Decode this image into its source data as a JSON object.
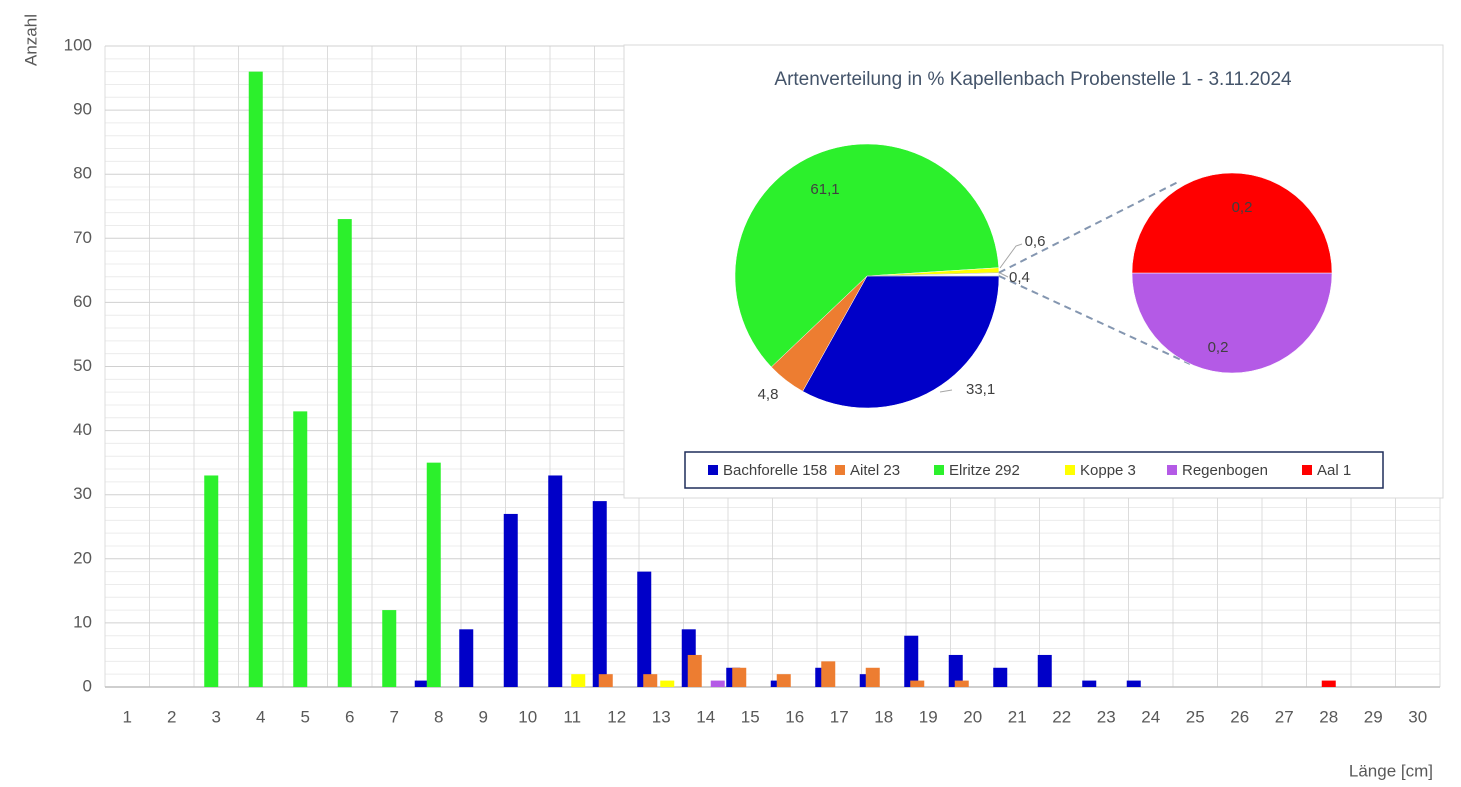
{
  "chart_data": [
    {
      "type": "bar",
      "y_label": "Anzahl",
      "x_label": "Länge [cm]",
      "categories": [
        1,
        2,
        3,
        4,
        5,
        6,
        7,
        8,
        9,
        10,
        11,
        12,
        13,
        14,
        15,
        16,
        17,
        18,
        19,
        20,
        21,
        22,
        23,
        24,
        25,
        26,
        27,
        28,
        29,
        30
      ],
      "series": [
        {
          "name": "Bachforelle",
          "color": "#0000c8",
          "values": [
            0,
            0,
            0,
            0,
            0,
            0,
            0,
            1,
            9,
            27,
            33,
            29,
            18,
            9,
            3,
            1,
            3,
            2,
            8,
            5,
            3,
            5,
            1,
            1,
            0,
            0,
            0,
            0,
            0,
            0
          ]
        },
        {
          "name": "Aitel",
          "color": "#ed7d31",
          "values": [
            0,
            0,
            0,
            0,
            0,
            0,
            0,
            0,
            0,
            0,
            0,
            2,
            2,
            5,
            3,
            2,
            4,
            3,
            1,
            1,
            0,
            0,
            0,
            0,
            0,
            0,
            0,
            0,
            0,
            0
          ]
        },
        {
          "name": "Elritze",
          "color": "#2cf02c",
          "values": [
            0,
            0,
            33,
            96,
            43,
            73,
            12,
            35,
            0,
            0,
            0,
            0,
            0,
            0,
            0,
            0,
            0,
            0,
            0,
            0,
            0,
            0,
            0,
            0,
            0,
            0,
            0,
            0,
            0,
            0
          ]
        },
        {
          "name": "Koppe",
          "color": "#ffff00",
          "values": [
            0,
            0,
            0,
            0,
            0,
            0,
            0,
            0,
            0,
            0,
            2,
            0,
            1,
            0,
            0,
            0,
            0,
            0,
            0,
            0,
            0,
            0,
            0,
            0,
            0,
            0,
            0,
            0,
            0,
            0
          ]
        },
        {
          "name": "Regenbogen",
          "color": "#b45ae6",
          "values": [
            0,
            0,
            0,
            0,
            0,
            0,
            0,
            0,
            0,
            0,
            0,
            0,
            0,
            1,
            0,
            0,
            0,
            0,
            0,
            0,
            0,
            0,
            0,
            0,
            0,
            0,
            0,
            0,
            0,
            0
          ]
        },
        {
          "name": "Aal",
          "color": "#ff0000",
          "values": [
            0,
            0,
            0,
            0,
            0,
            0,
            0,
            0,
            0,
            0,
            0,
            0,
            0,
            0,
            0,
            0,
            0,
            0,
            0,
            0,
            0,
            0,
            0,
            0,
            0,
            0,
            0,
            1,
            0,
            0
          ]
        }
      ],
      "ylim": [
        0,
        100
      ],
      "yticks": [
        0,
        10,
        20,
        30,
        40,
        50,
        60,
        70,
        80,
        90,
        100
      ],
      "grid": true,
      "minor_grid": true
    },
    {
      "type": "pie-of-pie",
      "title": "Artenverteilung in % Kapellenbach Probenstelle 1 - 3.11.2024",
      "categories": [
        "Bachforelle 158",
        "Aitel 23",
        "Elritze 292",
        "Koppe 3",
        "Regenbogen",
        "Aal 1"
      ],
      "values": [
        33.1,
        4.8,
        61.1,
        0.6,
        0.2,
        0.2
      ],
      "value_labels": [
        "33,1",
        "4,8",
        "61,1",
        "0,6",
        "0,2",
        "0,2"
      ],
      "colors": [
        "#0000c8",
        "#ed7d31",
        "#2cf02c",
        "#ffff00",
        "#b45ae6",
        "#ff0000"
      ],
      "secondary_count": 2,
      "other_value": 0.4,
      "other_label": "0,4",
      "legend": "bottom"
    }
  ]
}
